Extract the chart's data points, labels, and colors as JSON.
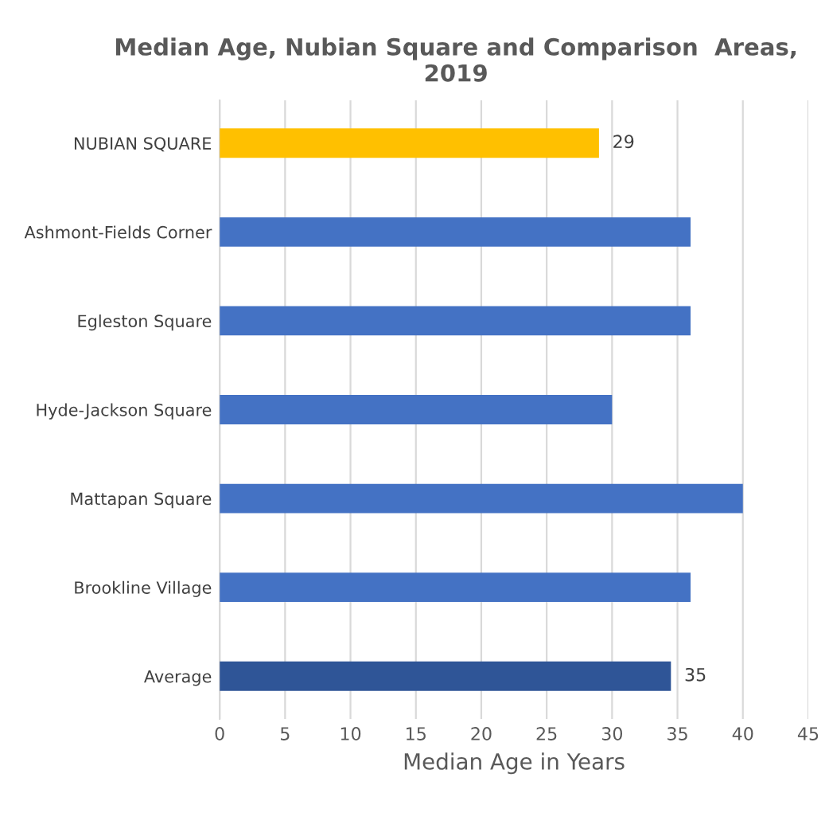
{
  "chart_data": {
    "type": "bar",
    "orientation": "horizontal",
    "title": "Median Age, Nubian Square and Comparison  Areas, 2019",
    "xlabel": "Median Age in Years",
    "categories": [
      "NUBIAN SQUARE",
      "Ashmont-Fields Corner",
      "Egleston Square",
      "Hyde-Jackson Square",
      "Mattapan Square",
      "Brookline Village",
      "Average"
    ],
    "values": [
      29,
      36,
      36,
      30,
      40,
      36,
      34.5
    ],
    "colors": [
      "#ffc000",
      "#4472c4",
      "#4472c4",
      "#4472c4",
      "#4472c4",
      "#4472c4",
      "#2f5597"
    ],
    "value_labels": [
      "29",
      null,
      null,
      null,
      null,
      null,
      "35"
    ],
    "xlim": [
      0,
      45
    ],
    "xticks": [
      0,
      5,
      10,
      15,
      20,
      25,
      30,
      35,
      40,
      45
    ],
    "grid": "x",
    "legend": false
  }
}
